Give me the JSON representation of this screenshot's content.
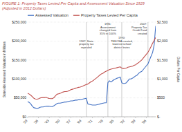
{
  "chart_data": {
    "type": "line",
    "title": "FIGURE 1: Property Taxes Levied Per Capita and Assessment Valuation Since 1929",
    "subtitle": "(Adjusted in 2012 Dollars)",
    "ylabel": "Statewide Assessed Valuation in Millions",
    "y2label": "Dollars Per Capita",
    "x": [
      1929,
      1930,
      1931,
      1932,
      1933,
      1934,
      1935,
      1936,
      1937,
      1938,
      1939,
      1940,
      1941,
      1942,
      1943,
      1944,
      1945,
      1946,
      1947,
      1948,
      1949,
      1950,
      1951,
      1952,
      1953,
      1954,
      1955,
      1956,
      1957,
      1958,
      1959,
      1960,
      1961,
      1962,
      1963,
      1964,
      1965,
      1966,
      1967,
      1968,
      1969,
      1970,
      1971,
      1972,
      1973,
      1974,
      1975,
      1976,
      1977,
      1978,
      1979,
      1980,
      1981,
      1982,
      1983,
      1984,
      1985,
      1986,
      1987,
      1988,
      1989,
      1990,
      1991,
      1992,
      1993,
      1994,
      1995,
      1996,
      1997,
      1998,
      1999,
      2000,
      2001,
      2002,
      2003,
      2004,
      2005,
      2006,
      2007,
      2008,
      2009,
      2010,
      2011,
      2012
    ],
    "series": [
      {
        "name": "Assessed Valuation",
        "color": "#4472C4",
        "values": [
          40000,
          38000,
          34000,
          28000,
          24000,
          23000,
          22000,
          23000,
          25000,
          26000,
          26000,
          27000,
          28000,
          28000,
          28000,
          27000,
          27000,
          29000,
          32000,
          35000,
          36000,
          36000,
          37000,
          38000,
          39000,
          39000,
          40000,
          41000,
          42000,
          42000,
          43000,
          44000,
          44000,
          45000,
          45000,
          46000,
          47000,
          48000,
          49000,
          34000,
          33000,
          32000,
          31000,
          31000,
          31000,
          32000,
          33000,
          34000,
          35000,
          36000,
          37000,
          37000,
          90000,
          95000,
          92000,
          95000,
          98000,
          100000,
          102000,
          103000,
          105000,
          90000,
          88000,
          88000,
          90000,
          95000,
          100000,
          100000,
          102000,
          105000,
          108000,
          110000,
          115000,
          118000,
          120000,
          125000,
          130000,
          135000,
          140000,
          150000,
          160000,
          170000,
          190000,
          240000
        ]
      },
      {
        "name": "Property Taxes Levied Per Capita",
        "color": "#C0504D",
        "axis": "y2",
        "values": [
          620,
          600,
          570,
          530,
          490,
          470,
          465,
          475,
          495,
          505,
          508,
          508,
          515,
          495,
          485,
          478,
          478,
          505,
          555,
          595,
          608,
          618,
          638,
          655,
          665,
          665,
          675,
          695,
          715,
          728,
          738,
          755,
          765,
          778,
          785,
          798,
          815,
          835,
          855,
          865,
          895,
          925,
          945,
          975,
          1005,
          1038,
          1075,
          1108,
          1138,
          1155,
          1185,
          1205,
          1228,
          1245,
          1258,
          1268,
          1278,
          1288,
          1298,
          1308,
          1318,
          1285,
          1275,
          1278,
          1288,
          1308,
          1318,
          1328,
          1338,
          1358,
          1375,
          1405,
          1435,
          1465,
          1505,
          1555,
          1605,
          1655,
          1705,
          1775,
          1855,
          1945,
          2015,
          2095
        ]
      }
    ],
    "xlim": [
      1929,
      2012
    ],
    "xticks": [
      {
        "value": 1929,
        "label": "'29"
      },
      {
        "value": 1936,
        "label": "'36"
      },
      {
        "value": 1943,
        "label": "'43"
      },
      {
        "value": 1950,
        "label": "'50"
      },
      {
        "value": 1957,
        "label": "'57"
      },
      {
        "value": 1964,
        "label": "'64"
      },
      {
        "value": 1971,
        "label": "'71"
      },
      {
        "value": 1978,
        "label": "'78"
      },
      {
        "value": 1985,
        "label": "'85"
      },
      {
        "value": 1992,
        "label": "'92"
      },
      {
        "value": 1999,
        "label": "'99"
      },
      {
        "value": 2006,
        "label": "'06"
      }
    ],
    "ylim": [
      0,
      250000
    ],
    "yticks": [
      {
        "value": 0,
        "label": "$0"
      },
      {
        "value": 50000,
        "label": "$50,000"
      },
      {
        "value": 100000,
        "label": "$100,000"
      },
      {
        "value": 150000,
        "label": "$150,000"
      },
      {
        "value": 200000,
        "label": "$200,000"
      },
      {
        "value": 250000,
        "label": "$250,000"
      }
    ],
    "y2lim": [
      0,
      2500
    ],
    "y2ticks": [
      {
        "value": 0,
        "label": "$-"
      },
      {
        "value": 500,
        "label": "$500"
      },
      {
        "value": 1000,
        "label": "$1,000"
      },
      {
        "value": 1500,
        "label": "$1,500"
      },
      {
        "value": 2000,
        "label": "$2,000"
      },
      {
        "value": 2500,
        "label": "$2,500"
      }
    ],
    "annotations": [
      {
        "x": 1967,
        "text": "1967: State\nproperty tax\nrepealed"
      },
      {
        "x": 1981,
        "text": "1981:\nAssessment\nchanged from\n35% to 100%"
      },
      {
        "x": 1990,
        "text": "1990:\nTEEOSA created,\nlowered school\ndistrict levies"
      },
      {
        "x": 2007,
        "text": "2007:\nProperty Tax\nCredit Fund\ncreated"
      }
    ],
    "grid": true,
    "legend": "upper left"
  }
}
